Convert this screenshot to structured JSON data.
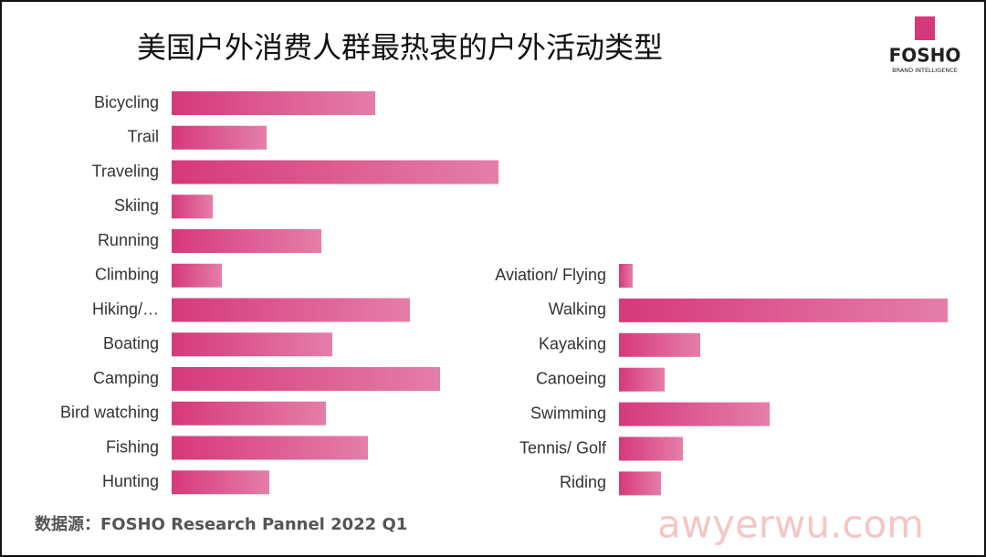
{
  "header": {
    "title": "美国户外消费人群最热衷的户外活动类型",
    "logo": "FOSHO",
    "logo_sub": "BRAND INTELLIGENCE"
  },
  "footer": {
    "source": "数据源：FOSHO Research Pannel 2022 Q1",
    "watermark": "awyerwu.com"
  },
  "chart_data": [
    {
      "type": "bar",
      "orientation": "horizontal",
      "color": "#d6397a",
      "categories": [
        "Bicycling",
        "Trail",
        "Traveling",
        "Skiing",
        "Running",
        "Climbing",
        "Hiking/…",
        "Boating",
        "Camping",
        "Bird watching",
        "Fishing",
        "Hunting"
      ],
      "values": [
        223,
        104,
        358,
        45,
        164,
        55,
        261,
        176,
        294,
        169,
        215,
        107
      ],
      "xlim": [
        0,
        400
      ]
    },
    {
      "type": "bar",
      "orientation": "horizontal",
      "color": "#d6397a",
      "categories": [
        "Aviation/ Flying",
        "Walking",
        "Kayaking",
        "Canoeing",
        "Swimming",
        "Tennis/ Golf",
        "Riding"
      ],
      "values": [
        15,
        360,
        89,
        50,
        165,
        70,
        46
      ],
      "xlim": [
        0,
        400
      ]
    }
  ]
}
